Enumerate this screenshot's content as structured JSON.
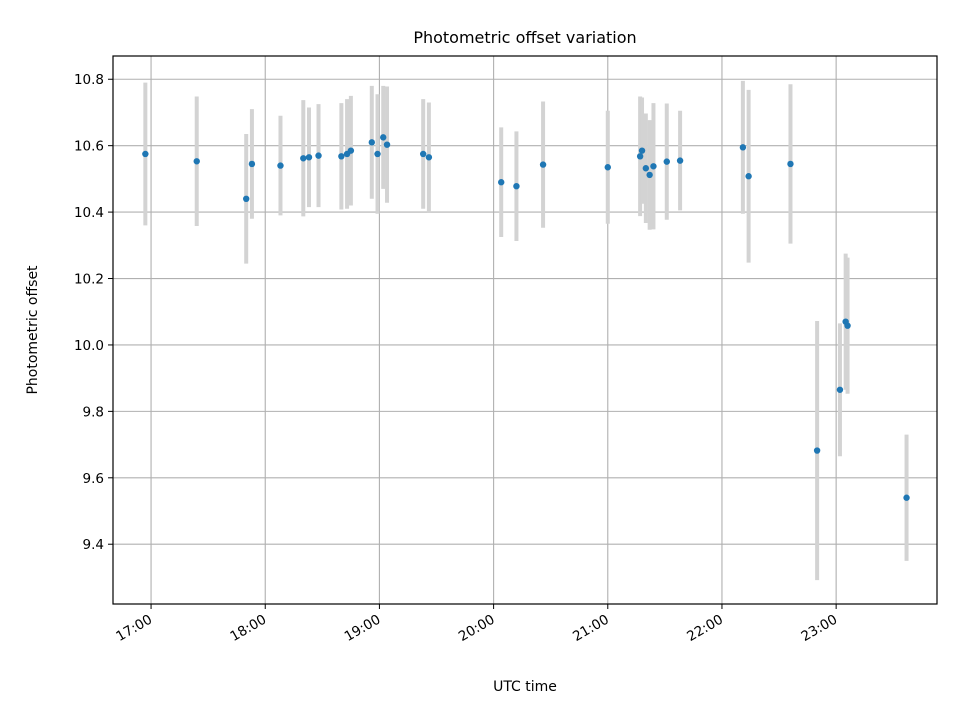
{
  "chart_data": {
    "type": "scatter",
    "title": "Photometric offset variation",
    "xlabel": "UTC time",
    "ylabel": "Photometric offset",
    "x_unit": "UTC time of day (HH:MM)",
    "xlim": [
      "16:40",
      "23:53"
    ],
    "ylim": [
      9.22,
      10.87
    ],
    "grid": true,
    "x_ticks": [
      "17:00",
      "18:00",
      "19:00",
      "20:00",
      "21:00",
      "22:00",
      "23:00"
    ],
    "y_ticks": [
      "9.4",
      "9.6",
      "9.8",
      "10.0",
      "10.2",
      "10.4",
      "10.6",
      "10.8"
    ],
    "series": [
      {
        "points": [
          {
            "x": "16:57",
            "y": 10.575,
            "yerr": 0.215
          },
          {
            "x": "17:24",
            "y": 10.553,
            "yerr": 0.195
          },
          {
            "x": "17:50",
            "y": 10.44,
            "yerr": 0.195
          },
          {
            "x": "17:53",
            "y": 10.545,
            "yerr": 0.165
          },
          {
            "x": "18:08",
            "y": 10.54,
            "yerr": 0.15
          },
          {
            "x": "18:20",
            "y": 10.562,
            "yerr": 0.175
          },
          {
            "x": "18:23",
            "y": 10.565,
            "yerr": 0.15
          },
          {
            "x": "18:28",
            "y": 10.57,
            "yerr": 0.155
          },
          {
            "x": "18:40",
            "y": 10.568,
            "yerr": 0.16
          },
          {
            "x": "18:43",
            "y": 10.575,
            "yerr": 0.165
          },
          {
            "x": "18:45",
            "y": 10.585,
            "yerr": 0.165
          },
          {
            "x": "18:56",
            "y": 10.61,
            "yerr": 0.17
          },
          {
            "x": "18:59",
            "y": 10.575,
            "yerr": 0.18
          },
          {
            "x": "19:02",
            "y": 10.625,
            "yerr": 0.155
          },
          {
            "x": "19:04",
            "y": 10.603,
            "yerr": 0.175
          },
          {
            "x": "19:23",
            "y": 10.575,
            "yerr": 0.165
          },
          {
            "x": "19:26",
            "y": 10.565,
            "yerr": 0.165
          },
          {
            "x": "20:04",
            "y": 10.49,
            "yerr": 0.165
          },
          {
            "x": "20:12",
            "y": 10.478,
            "yerr": 0.165
          },
          {
            "x": "20:26",
            "y": 10.543,
            "yerr": 0.19
          },
          {
            "x": "21:00",
            "y": 10.535,
            "yerr": 0.17
          },
          {
            "x": "21:17",
            "y": 10.568,
            "yerr": 0.18
          },
          {
            "x": "21:18",
            "y": 10.585,
            "yerr": 0.16
          },
          {
            "x": "21:20",
            "y": 10.532,
            "yerr": 0.165
          },
          {
            "x": "21:22",
            "y": 10.512,
            "yerr": 0.165
          },
          {
            "x": "21:24",
            "y": 10.538,
            "yerr": 0.19
          },
          {
            "x": "21:31",
            "y": 10.552,
            "yerr": 0.175
          },
          {
            "x": "21:38",
            "y": 10.555,
            "yerr": 0.15
          },
          {
            "x": "22:11",
            "y": 10.595,
            "yerr": 0.2
          },
          {
            "x": "22:14",
            "y": 10.508,
            "yerr": 0.26
          },
          {
            "x": "22:36",
            "y": 10.545,
            "yerr": 0.24
          },
          {
            "x": "22:50",
            "y": 9.682,
            "yerr": 0.39
          },
          {
            "x": "23:02",
            "y": 9.865,
            "yerr": 0.2
          },
          {
            "x": "23:05",
            "y": 10.07,
            "yerr": 0.205
          },
          {
            "x": "23:06",
            "y": 10.058,
            "yerr": 0.205
          },
          {
            "x": "23:37",
            "y": 9.54,
            "yerr": 0.19
          }
        ]
      }
    ]
  },
  "colors": {
    "marker": "#1f77b4",
    "errorbar": "#d3d3d3",
    "grid": "#b0b0b0",
    "axes": "#000000"
  }
}
